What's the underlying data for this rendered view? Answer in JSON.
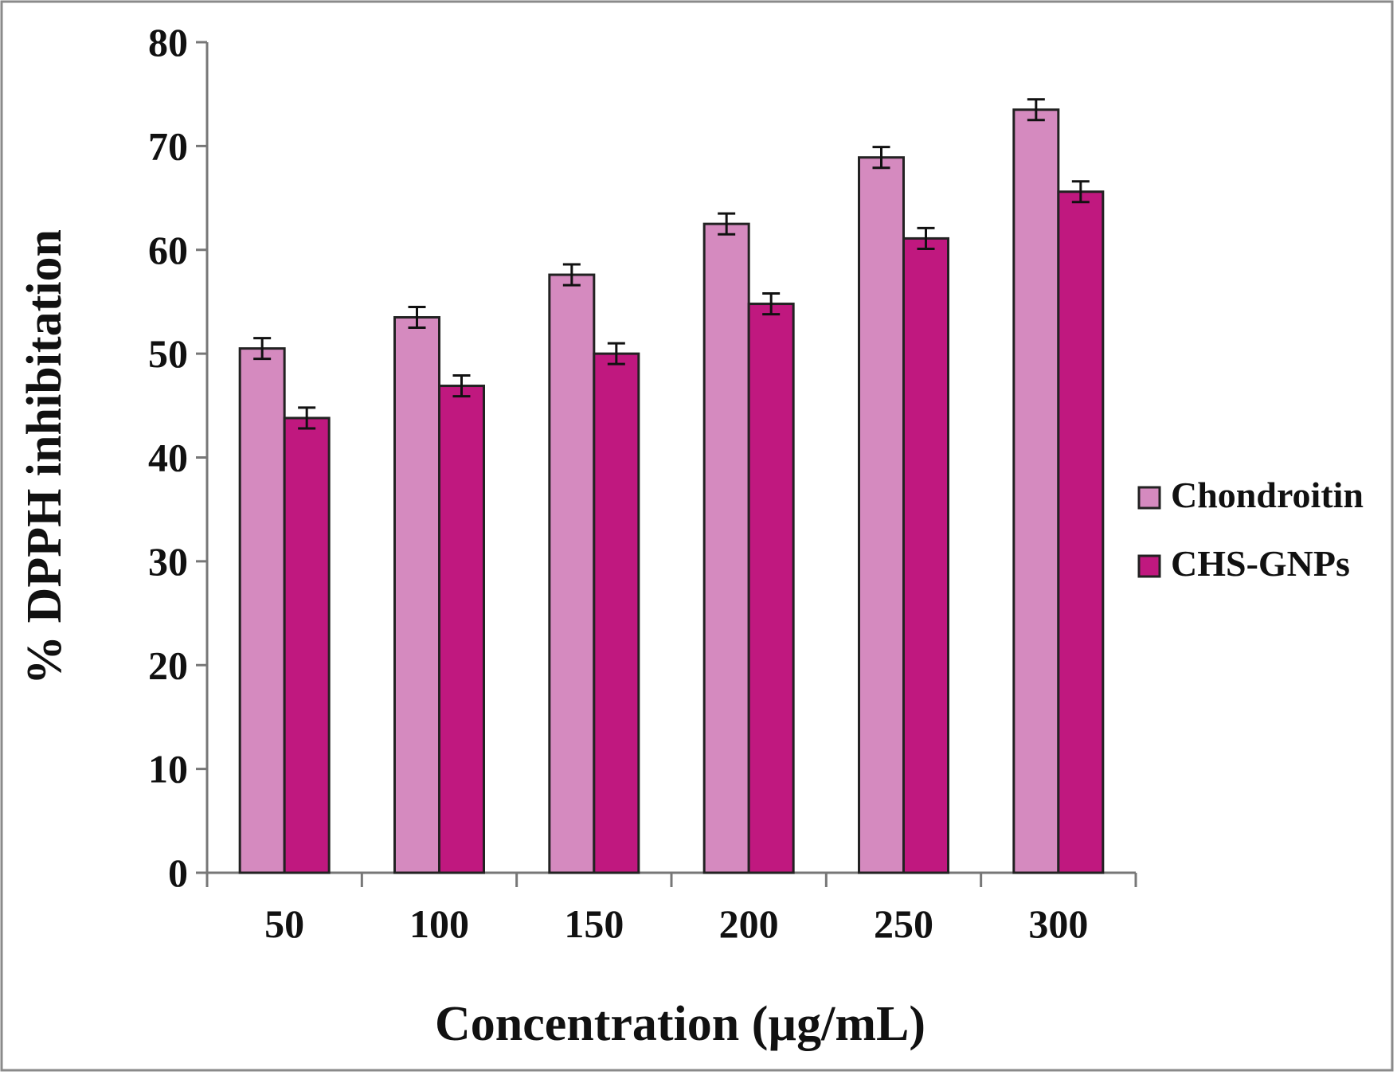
{
  "chart_data": {
    "type": "bar",
    "title": "",
    "xlabel": "Concentration (µg/mL)",
    "ylabel": "% DPPH inhibitation",
    "categories": [
      "50",
      "100",
      "150",
      "200",
      "250",
      "300"
    ],
    "series": [
      {
        "name": "Chondroitin",
        "color": "#d58abf",
        "values": [
          50.5,
          53.5,
          57.6,
          62.5,
          68.9,
          73.5
        ],
        "errors": [
          1.0,
          1.0,
          1.0,
          1.0,
          1.0,
          1.0
        ]
      },
      {
        "name": "CHS-GNPs",
        "color": "#c0187f",
        "values": [
          43.8,
          46.9,
          50.0,
          54.8,
          61.1,
          65.6
        ],
        "errors": [
          1.0,
          1.0,
          1.0,
          1.0,
          1.0,
          1.0
        ]
      }
    ],
    "ylim": [
      0,
      80
    ],
    "yticks": [
      0,
      10,
      20,
      30,
      40,
      50,
      60,
      70,
      80
    ],
    "grid": false,
    "legend_position": "right"
  }
}
